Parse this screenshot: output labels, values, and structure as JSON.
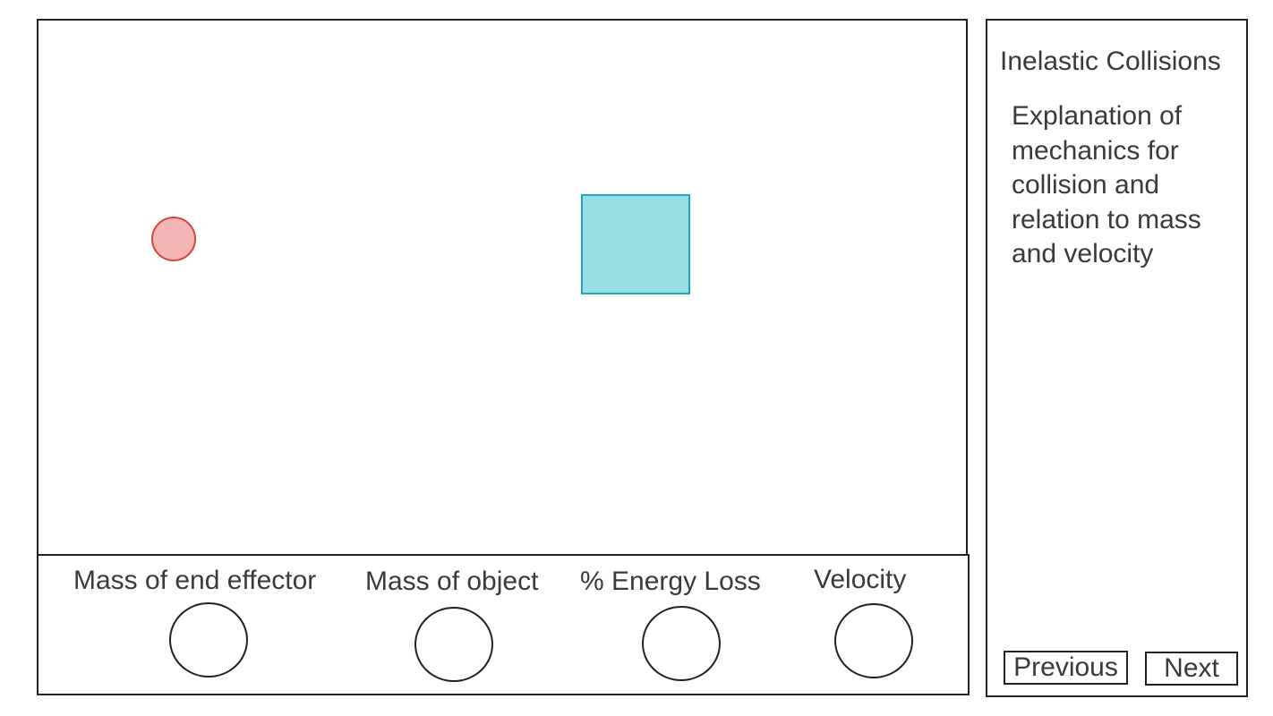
{
  "sidebar": {
    "title": "Inelastic Collisions",
    "description": "Explanation of mechanics for collision and relation to mass and velocity",
    "previous_label": "Previous",
    "next_label": "Next"
  },
  "controls": [
    {
      "label": "Mass of end effector"
    },
    {
      "label": "Mass of object"
    },
    {
      "label": "% Energy Loss"
    },
    {
      "label": "Velocity"
    }
  ],
  "simulation": {
    "end_effector_color": "#f4b6b4",
    "end_effector_border": "#d9433b",
    "object_color": "#9bdde6",
    "object_border": "#1ba9bb"
  }
}
